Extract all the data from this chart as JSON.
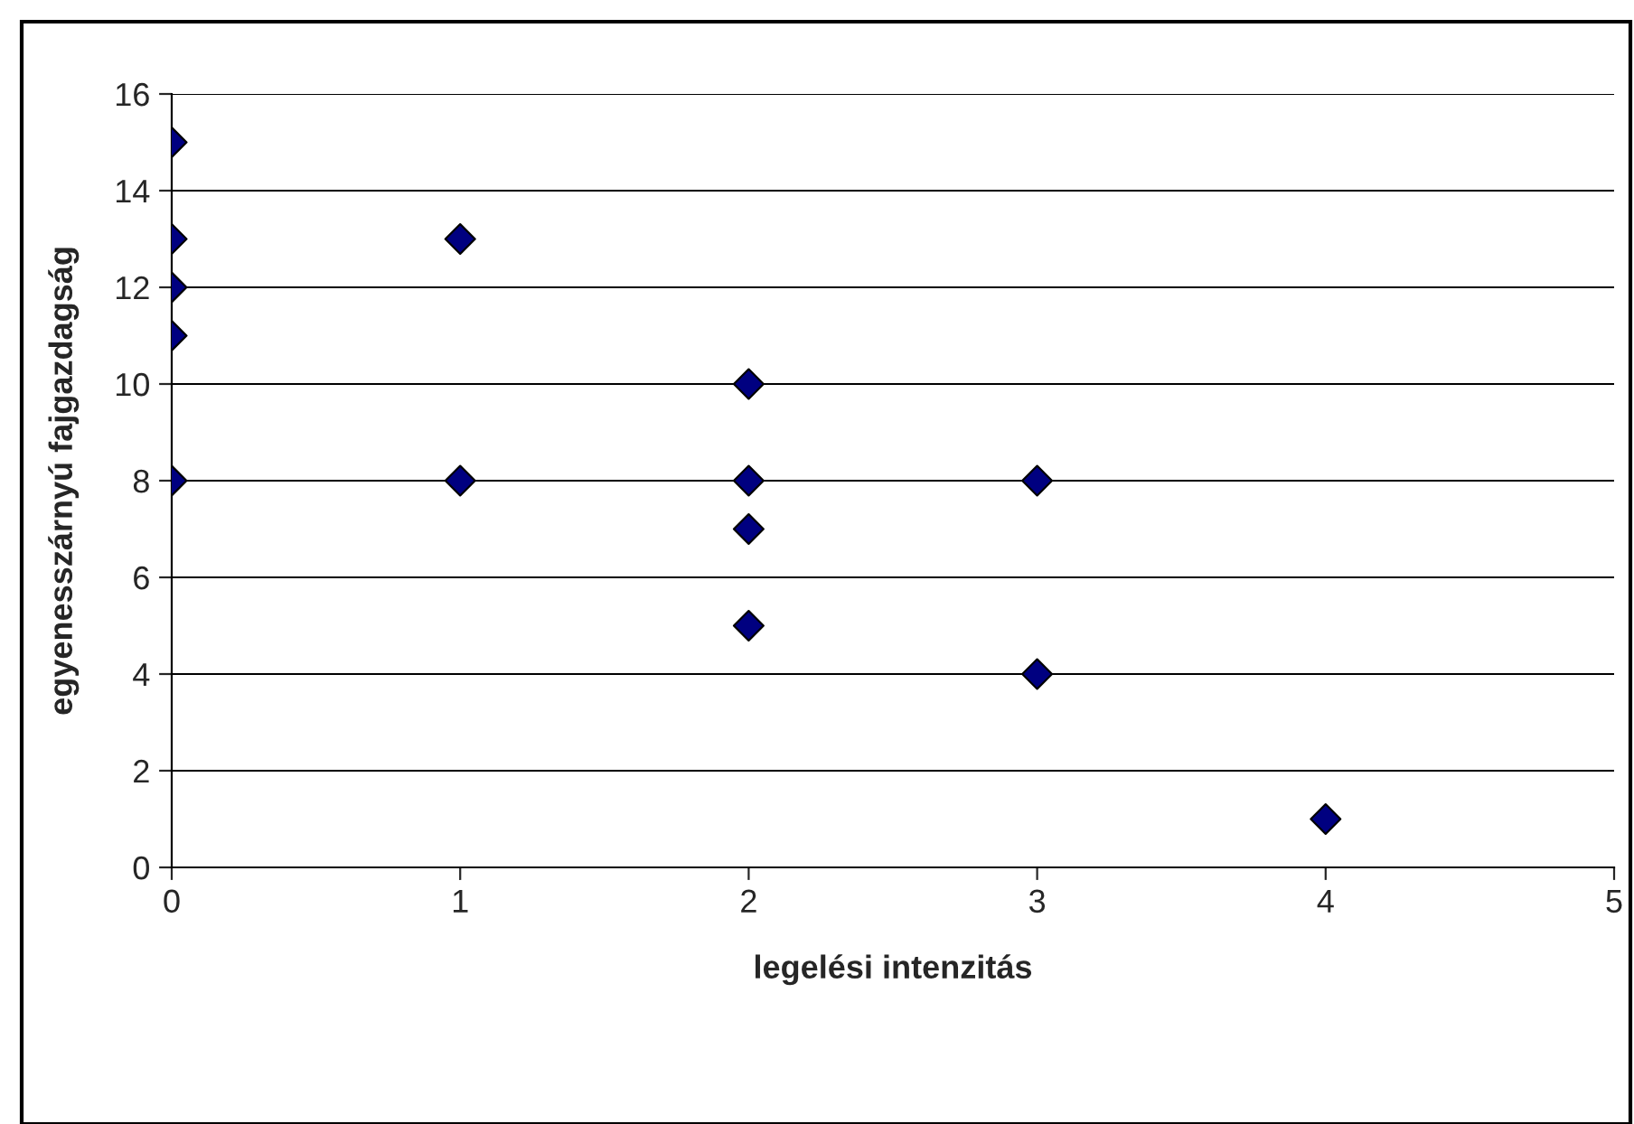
{
  "chart_data": {
    "type": "scatter",
    "xlabel": "legelési intenzitás",
    "ylabel": "egyenesszárnyú fajgazdagság",
    "series": [
      {
        "color": "#000080",
        "x": [
          0,
          0,
          0,
          0,
          0,
          1,
          1,
          2,
          2,
          2,
          2,
          3,
          3,
          4
        ],
        "values": [
          15,
          13,
          12,
          11,
          8,
          13,
          8,
          10,
          8,
          7,
          5,
          8,
          4,
          1
        ]
      }
    ],
    "xlim": [
      0,
      5
    ],
    "xticks": [
      0,
      1,
      2,
      3,
      4,
      5
    ],
    "ylim": [
      0,
      16
    ],
    "yticks": [
      0,
      2,
      4,
      6,
      8,
      10,
      12,
      14,
      16
    ],
    "grid": "y",
    "marker": "diamond",
    "legend": false
  }
}
